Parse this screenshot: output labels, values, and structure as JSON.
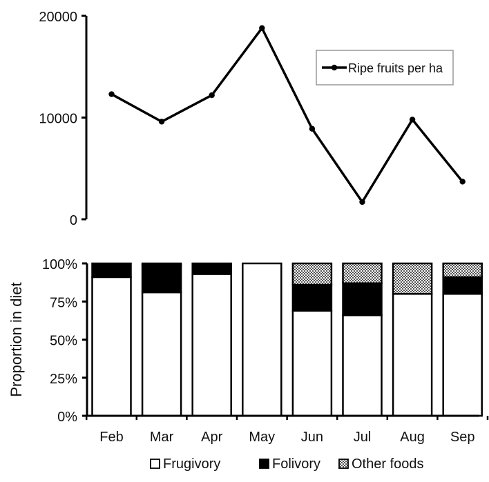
{
  "chart_data": [
    {
      "type": "line",
      "title": "",
      "xlabel": "",
      "ylabel": "",
      "categories": [
        "Feb",
        "Mar",
        "Apr",
        "May",
        "Jun",
        "Jul",
        "Aug",
        "Sep"
      ],
      "series": [
        {
          "name": "Ripe fruits per ha",
          "values": [
            12300,
            9600,
            12200,
            18800,
            8900,
            1700,
            9800,
            3700
          ]
        }
      ],
      "yticks": [
        "0",
        "10000",
        "20000"
      ],
      "ylim": [
        0,
        20000
      ],
      "grid": false,
      "legend_position": "top-right",
      "colors": {
        "line": "#000000"
      }
    },
    {
      "type": "bar",
      "stacked": true,
      "title": "",
      "xlabel": "",
      "ylabel": "Proportion in diet",
      "categories": [
        "Feb",
        "Mar",
        "Apr",
        "May",
        "Jun",
        "Jul",
        "Aug",
        "Sep"
      ],
      "series": [
        {
          "name": "Frugivory",
          "values": [
            91,
            81,
            93,
            100,
            69,
            66,
            80,
            80
          ]
        },
        {
          "name": "Folivory",
          "values": [
            9,
            18,
            7,
            0,
            17,
            21,
            0,
            11
          ]
        },
        {
          "name": "Other foods",
          "values": [
            0,
            1,
            0,
            0,
            14,
            13,
            20,
            9
          ]
        }
      ],
      "yticks": [
        "0%",
        "25%",
        "50%",
        "75%",
        "100%"
      ],
      "ylim": [
        0,
        100
      ],
      "grid": false,
      "legend_position": "bottom",
      "colors": {
        "Frugivory": "#ffffff",
        "Folivory": "#000000",
        "Other foods": "#9a9a9a"
      }
    }
  ]
}
